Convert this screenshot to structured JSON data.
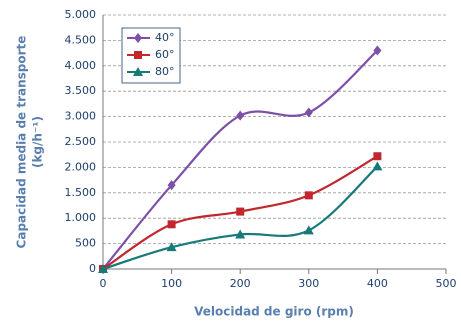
{
  "chart_data": {
    "type": "line",
    "xlabel": "Velocidad de giro (rpm)",
    "ylabel": [
      "Capacidad media de transporte",
      "(kg/h⁻¹)"
    ],
    "x": [
      0,
      100,
      200,
      300,
      400
    ],
    "series": [
      {
        "name": "40°",
        "color": "#7d4fa8",
        "marker": "diamond",
        "values": [
          0,
          1650,
          3020,
          3080,
          4300
        ]
      },
      {
        "name": "60°",
        "color": "#c1272d",
        "marker": "square",
        "values": [
          0,
          880,
          1130,
          1450,
          2220
        ]
      },
      {
        "name": "80°",
        "color": "#167a78",
        "marker": "triangle",
        "values": [
          0,
          430,
          680,
          760,
          2020
        ]
      }
    ],
    "xlim": [
      0,
      500
    ],
    "xticks": [
      0,
      100,
      200,
      300,
      400,
      500
    ],
    "ylim": [
      0,
      5000
    ],
    "yticks": [
      0,
      500,
      {
        "value": 1000,
        "label": "1.000"
      },
      {
        "value": 1500,
        "label": "1.500"
      },
      {
        "value": 2000,
        "label": "2.000"
      },
      {
        "value": 2500,
        "label": "2.500"
      },
      {
        "value": 3000,
        "label": "3.000"
      },
      {
        "value": 3500,
        "label": "3.500"
      },
      {
        "value": 4000,
        "label": "4.000"
      },
      {
        "value": 4500,
        "label": "4.500"
      },
      {
        "value": 5000,
        "label": "5.000"
      }
    ],
    "grid": true,
    "smooth": true,
    "legend": "upper-left"
  }
}
